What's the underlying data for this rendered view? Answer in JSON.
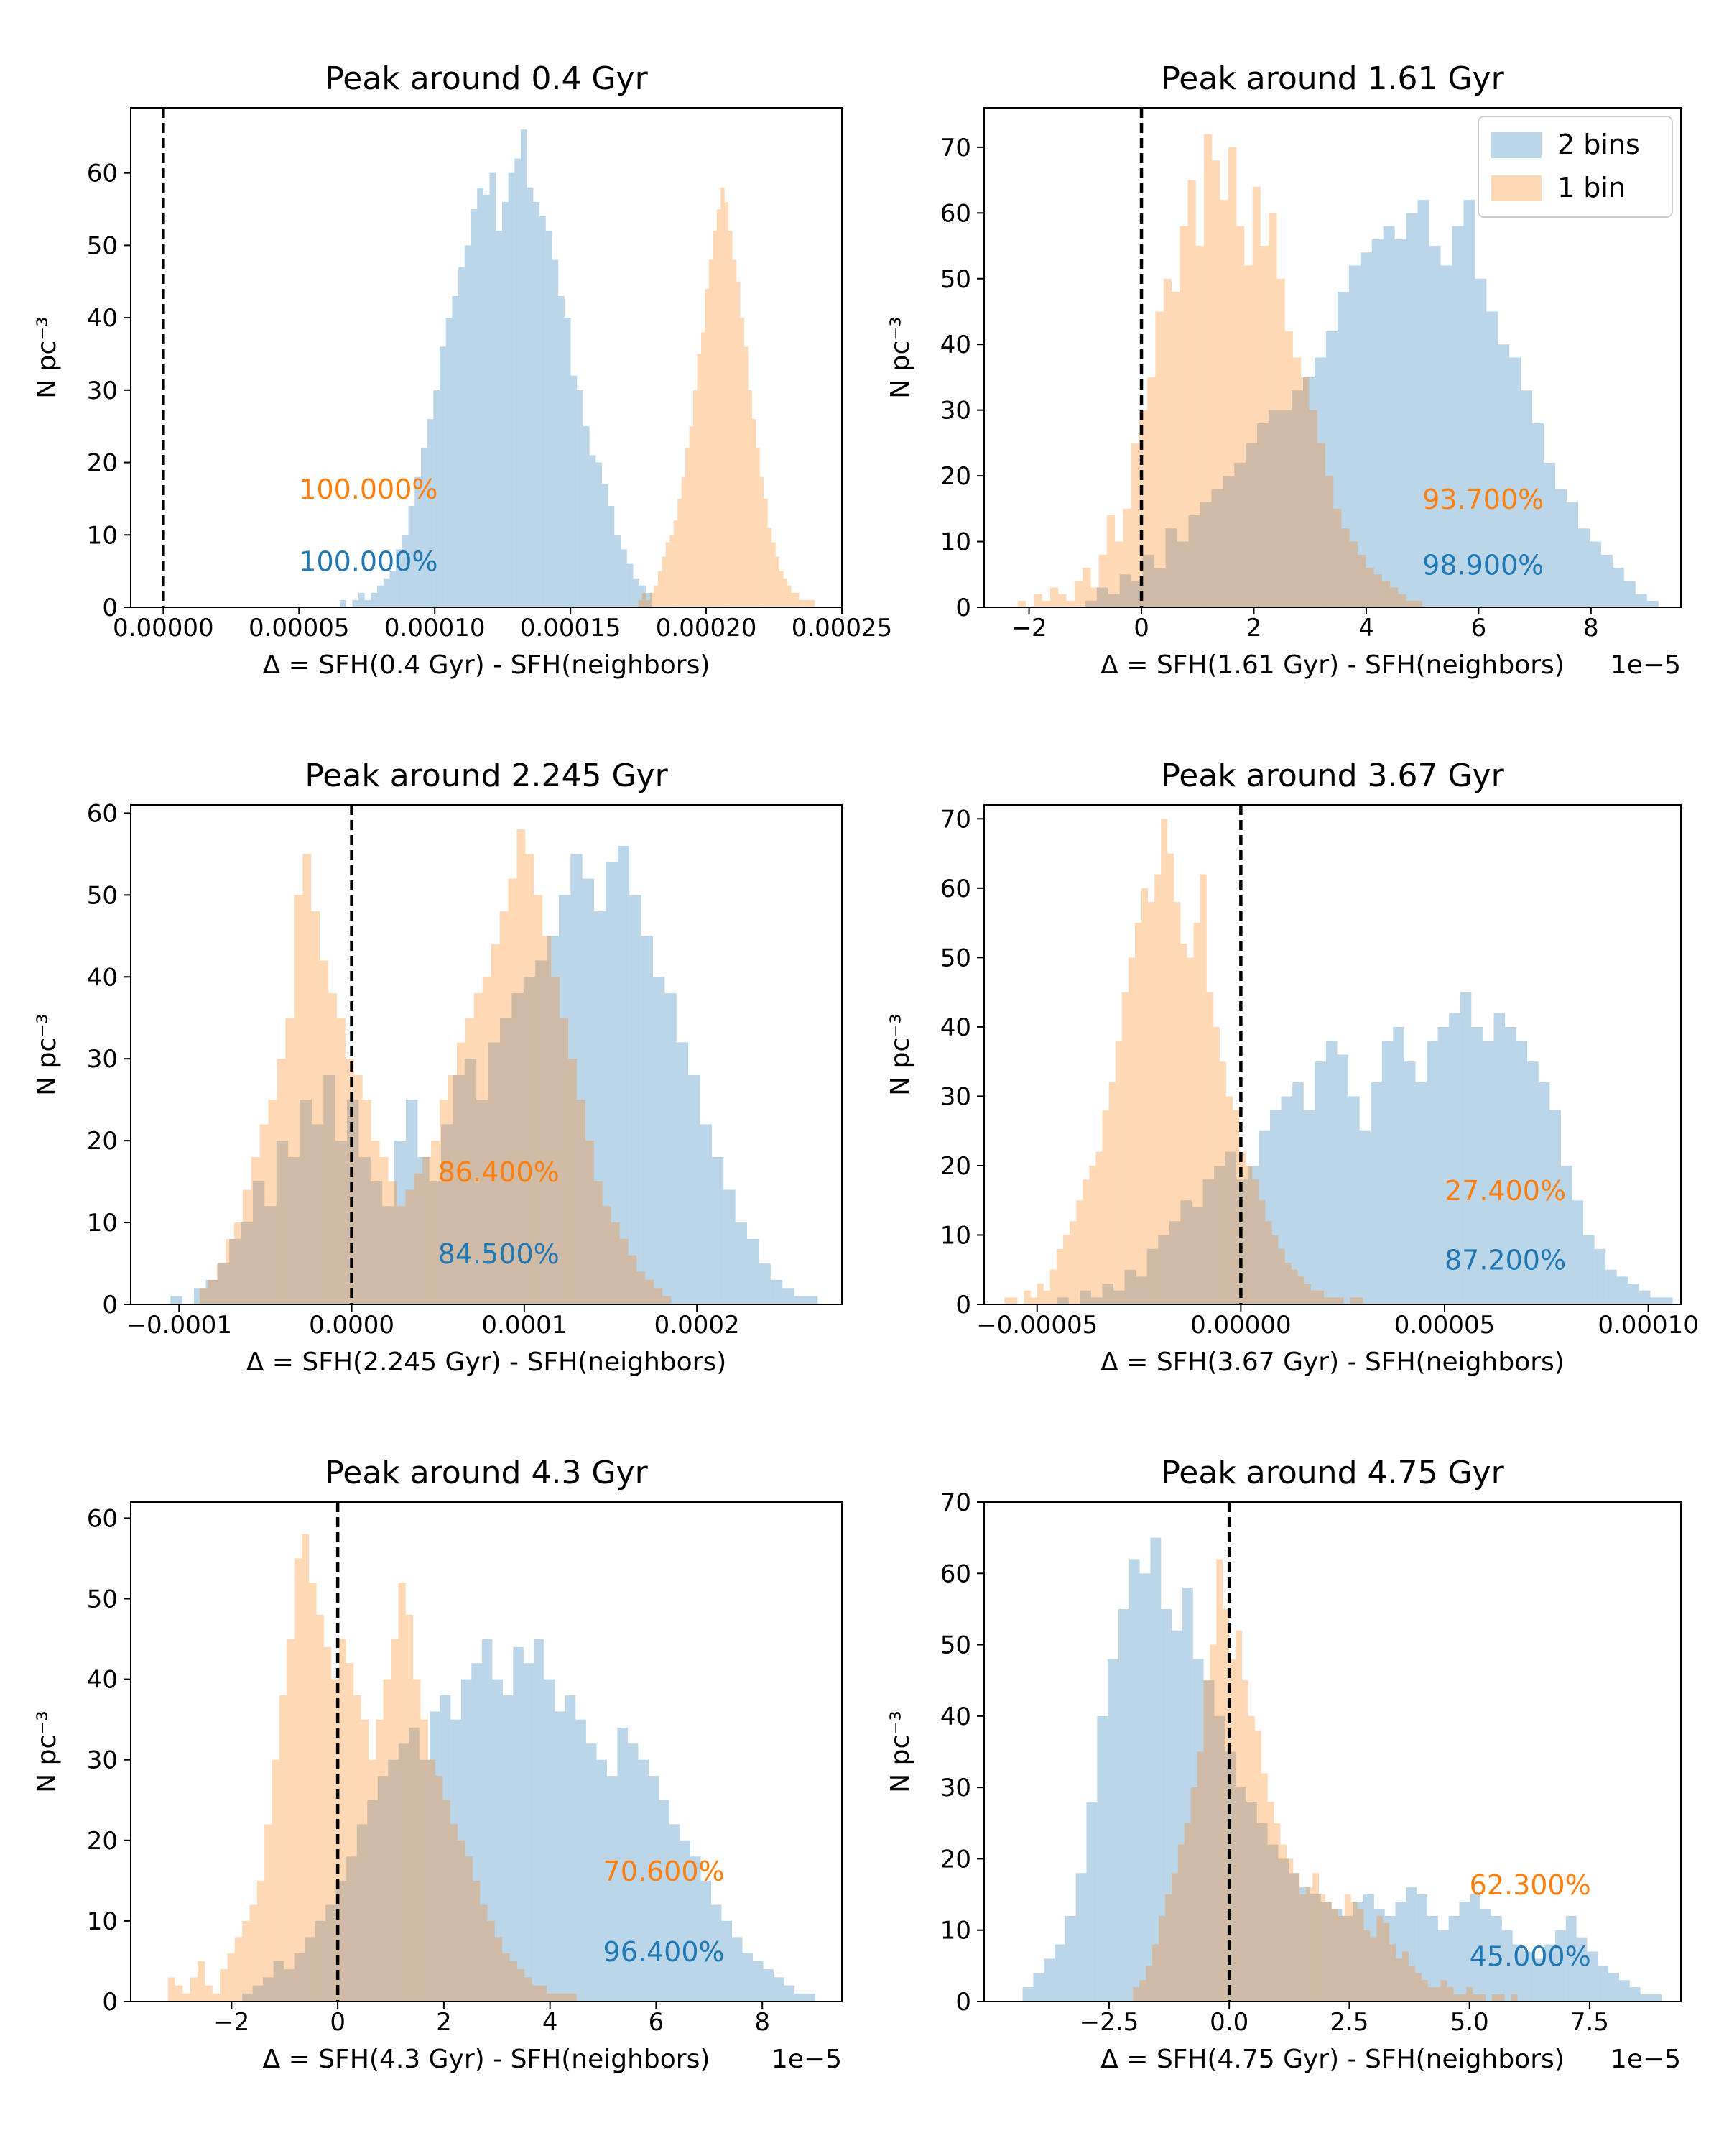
{
  "colors": {
    "two_bins": "#9cc3e1",
    "one_bin": "#ffc491",
    "overlap": "#c2a98e",
    "label_two_bins": "#1f77b4",
    "label_one_bin": "#ff7f0e",
    "axis": "#000000"
  },
  "legend": {
    "two_bins": "2 bins",
    "one_bin": "1 bin"
  },
  "chart_data": [
    {
      "type": "histogram",
      "title": "Peak around 0.4 Gyr",
      "xlabel": "Δ = SFH(0.4 Gyr) - SFH(neighbors)",
      "ylabel": "N pc⁻³",
      "offset_text": "",
      "xlim": [
        -1.2e-05,
        0.00025
      ],
      "ylim": [
        0,
        69
      ],
      "xticks": [
        0,
        5e-05,
        0.0001,
        0.00015,
        0.0002,
        0.00025
      ],
      "xtick_labels": [
        "0.00000",
        "0.00005",
        "0.00010",
        "0.00015",
        "0.00020",
        "0.00025"
      ],
      "yticks": [
        0,
        10,
        20,
        30,
        40,
        50,
        60
      ],
      "ytick_labels": [
        "0",
        "10",
        "20",
        "30",
        "40",
        "50",
        "60"
      ],
      "vline_x": 0,
      "legend_position": "",
      "annotations": {
        "one_bin": "100.000%",
        "two_bins": "100.000%"
      },
      "annotation_x": 5e-05,
      "annotation_y_one_bin": 15,
      "annotation_y_two_bins": 5,
      "series": [
        {
          "key": "two_bins",
          "bins": 50,
          "x_start": 6.5e-05,
          "x_end": 0.00018,
          "counts": [
            1,
            0,
            1,
            2,
            1,
            2,
            3,
            4,
            5,
            8,
            10,
            14,
            18,
            22,
            26,
            30,
            36,
            40,
            43,
            47,
            50,
            55,
            58,
            57,
            60,
            52,
            56,
            60,
            62,
            66,
            58,
            56,
            54,
            52,
            48,
            43,
            40,
            32,
            30,
            25,
            21,
            20,
            17,
            14,
            10,
            8,
            6,
            4,
            3,
            2
          ]
        },
        {
          "key": "one_bin",
          "bins": 45,
          "x_start": 0.000175,
          "x_end": 0.00024,
          "counts": [
            1,
            2,
            1,
            2,
            3,
            5,
            7,
            9,
            10,
            12,
            15,
            18,
            22,
            25,
            30,
            35,
            38,
            44,
            48,
            52,
            55,
            58,
            56,
            52,
            48,
            45,
            40,
            36,
            30,
            26,
            22,
            18,
            15,
            11,
            9,
            7,
            5,
            4,
            3,
            2,
            2,
            1,
            1,
            1,
            1
          ]
        }
      ]
    },
    {
      "type": "histogram",
      "title": "Peak around 1.61 Gyr",
      "xlabel": "Δ = SFH(1.61 Gyr) - SFH(neighbors)",
      "ylabel": "N pc⁻³",
      "offset_text": "1e−5",
      "xlim": [
        -2.8,
        9.6
      ],
      "ylim": [
        0,
        76
      ],
      "xticks": [
        -2,
        0,
        2,
        4,
        6,
        8
      ],
      "xtick_labels": [
        "−2",
        "0",
        "2",
        "4",
        "6",
        "8"
      ],
      "yticks": [
        0,
        10,
        20,
        30,
        40,
        50,
        60,
        70
      ],
      "ytick_labels": [
        "0",
        "10",
        "20",
        "30",
        "40",
        "50",
        "60",
        "70"
      ],
      "vline_x": 0,
      "legend_position": "top-right",
      "annotations": {
        "one_bin": "93.700%",
        "two_bins": "98.900%"
      },
      "annotation_x": 5.0,
      "annotation_y_one_bin": 15,
      "annotation_y_two_bins": 5,
      "series": [
        {
          "key": "two_bins",
          "bins": 50,
          "x_start": -1.0,
          "x_end": 9.2,
          "counts": [
            1,
            3,
            2,
            5,
            4,
            8,
            6,
            12,
            10,
            14,
            16,
            18,
            20,
            22,
            25,
            28,
            30,
            30,
            33,
            35,
            38,
            42,
            48,
            52,
            54,
            56,
            58,
            56,
            60,
            62,
            55,
            52,
            58,
            62,
            50,
            45,
            40,
            38,
            33,
            28,
            22,
            18,
            16,
            12,
            10,
            8,
            6,
            4,
            2,
            1
          ]
        },
        {
          "key": "one_bin",
          "bins": 50,
          "x_start": -2.2,
          "x_end": 5.0,
          "counts": [
            1,
            0,
            2,
            1,
            3,
            2,
            1,
            4,
            6,
            3,
            8,
            14,
            10,
            15,
            25,
            30,
            35,
            45,
            50,
            48,
            58,
            65,
            55,
            72,
            68,
            62,
            70,
            58,
            52,
            64,
            55,
            60,
            50,
            42,
            38,
            35,
            30,
            25,
            20,
            15,
            12,
            10,
            8,
            6,
            5,
            4,
            3,
            2,
            1,
            1
          ]
        }
      ]
    },
    {
      "type": "histogram",
      "title": "Peak around 2.245 Gyr",
      "xlabel": "Δ = SFH(2.245 Gyr) - SFH(neighbors)",
      "ylabel": "N pc⁻³",
      "offset_text": "",
      "xlim": [
        -0.000128,
        0.000284
      ],
      "ylim": [
        0,
        61
      ],
      "xticks": [
        -0.0001,
        0,
        0.0001,
        0.0002
      ],
      "xtick_labels": [
        "−0.0001",
        "0.0000",
        "0.0001",
        "0.0002"
      ],
      "yticks": [
        0,
        10,
        20,
        30,
        40,
        50,
        60
      ],
      "ytick_labels": [
        "0",
        "10",
        "20",
        "30",
        "40",
        "50",
        "60"
      ],
      "vline_x": 0,
      "legend_position": "",
      "annotations": {
        "one_bin": "86.400%",
        "two_bins": "84.500%"
      },
      "annotation_x": 5e-05,
      "annotation_y_one_bin": 15,
      "annotation_y_two_bins": 5,
      "series": [
        {
          "key": "two_bins",
          "bins": 55,
          "x_start": -0.000105,
          "x_end": 0.00027,
          "counts": [
            1,
            0,
            2,
            3,
            5,
            8,
            10,
            15,
            12,
            20,
            18,
            25,
            22,
            28,
            20,
            25,
            18,
            15,
            12,
            20,
            25,
            18,
            15,
            22,
            28,
            30,
            25,
            32,
            35,
            38,
            40,
            42,
            45,
            50,
            55,
            52,
            48,
            54,
            56,
            50,
            45,
            40,
            38,
            32,
            28,
            22,
            18,
            14,
            10,
            8,
            5,
            3,
            2,
            1,
            1
          ]
        },
        {
          "key": "one_bin",
          "bins": 55,
          "x_start": -8.8e-05,
          "x_end": 0.000185,
          "counts": [
            2,
            3,
            5,
            8,
            10,
            14,
            18,
            22,
            25,
            30,
            35,
            50,
            55,
            48,
            42,
            38,
            35,
            30,
            28,
            25,
            20,
            18,
            15,
            12,
            14,
            16,
            18,
            20,
            25,
            28,
            32,
            35,
            38,
            40,
            44,
            48,
            52,
            58,
            55,
            50,
            45,
            40,
            35,
            30,
            25,
            20,
            15,
            12,
            10,
            8,
            6,
            4,
            3,
            2,
            1
          ]
        }
      ]
    },
    {
      "type": "histogram",
      "title": "Peak around 3.67 Gyr",
      "xlabel": "Δ = SFH(3.67 Gyr) - SFH(neighbors)",
      "ylabel": "N pc⁻³",
      "offset_text": "",
      "xlim": [
        -6.3e-05,
        0.000108
      ],
      "ylim": [
        0,
        72
      ],
      "xticks": [
        -5e-05,
        0,
        5e-05,
        0.0001
      ],
      "xtick_labels": [
        "−0.00005",
        "0.00000",
        "0.00005",
        "0.00010"
      ],
      "yticks": [
        0,
        10,
        20,
        30,
        40,
        50,
        60,
        70
      ],
      "ytick_labels": [
        "0",
        "10",
        "20",
        "30",
        "40",
        "50",
        "60",
        "70"
      ],
      "vline_x": 0,
      "legend_position": "",
      "annotations": {
        "one_bin": "27.400%",
        "two_bins": "87.200%"
      },
      "annotation_x": 5e-05,
      "annotation_y_one_bin": 15,
      "annotation_y_two_bins": 5,
      "series": [
        {
          "key": "two_bins",
          "bins": 55,
          "x_start": -4.5e-05,
          "x_end": 0.000106,
          "counts": [
            1,
            0,
            2,
            1,
            3,
            2,
            5,
            4,
            8,
            10,
            12,
            15,
            14,
            18,
            20,
            22,
            18,
            20,
            25,
            28,
            30,
            32,
            28,
            35,
            38,
            36,
            30,
            25,
            32,
            38,
            40,
            35,
            32,
            38,
            40,
            42,
            45,
            40,
            38,
            42,
            40,
            38,
            35,
            32,
            28,
            20,
            15,
            10,
            8,
            5,
            4,
            3,
            2,
            1,
            1
          ]
        },
        {
          "key": "one_bin",
          "bins": 55,
          "x_start": -5.8e-05,
          "x_end": 3e-05,
          "counts": [
            1,
            1,
            0,
            2,
            1,
            3,
            2,
            5,
            8,
            10,
            12,
            15,
            18,
            20,
            22,
            28,
            32,
            38,
            45,
            50,
            55,
            60,
            58,
            62,
            70,
            65,
            58,
            52,
            50,
            55,
            62,
            45,
            40,
            35,
            30,
            28,
            22,
            20,
            18,
            15,
            12,
            10,
            8,
            6,
            5,
            4,
            3,
            2,
            2,
            1,
            1,
            1,
            0,
            1,
            1
          ]
        }
      ]
    },
    {
      "type": "histogram",
      "title": "Peak around 4.3 Gyr",
      "xlabel": "Δ = SFH(4.3 Gyr) - SFH(neighbors)",
      "ylabel": "N pc⁻³",
      "offset_text": "1e−5",
      "xlim": [
        -3.9,
        9.5
      ],
      "ylim": [
        0,
        62
      ],
      "xticks": [
        -2,
        0,
        2,
        4,
        6,
        8
      ],
      "xtick_labels": [
        "−2",
        "0",
        "2",
        "4",
        "6",
        "8"
      ],
      "yticks": [
        0,
        10,
        20,
        30,
        40,
        50,
        60
      ],
      "ytick_labels": [
        "0",
        "10",
        "20",
        "30",
        "40",
        "50",
        "60"
      ],
      "vline_x": 0,
      "legend_position": "",
      "annotations": {
        "one_bin": "70.600%",
        "two_bins": "96.400%"
      },
      "annotation_x": 5.0,
      "annotation_y_one_bin": 15,
      "annotation_y_two_bins": 5,
      "series": [
        {
          "key": "two_bins",
          "bins": 55,
          "x_start": -1.8,
          "x_end": 9.0,
          "counts": [
            1,
            2,
            3,
            5,
            4,
            6,
            8,
            10,
            12,
            15,
            18,
            22,
            25,
            28,
            30,
            32,
            34,
            30,
            36,
            38,
            35,
            40,
            42,
            45,
            40,
            38,
            44,
            42,
            45,
            40,
            36,
            38,
            35,
            32,
            30,
            28,
            34,
            32,
            30,
            28,
            25,
            22,
            20,
            18,
            15,
            12,
            10,
            8,
            6,
            5,
            4,
            3,
            2,
            1,
            1
          ]
        },
        {
          "key": "one_bin",
          "bins": 55,
          "x_start": -3.2,
          "x_end": 4.5,
          "counts": [
            3,
            2,
            1,
            3,
            5,
            2,
            1,
            4,
            6,
            8,
            10,
            12,
            15,
            22,
            30,
            38,
            45,
            55,
            58,
            52,
            48,
            44,
            40,
            45,
            42,
            38,
            35,
            30,
            35,
            40,
            45,
            52,
            48,
            40,
            35,
            30,
            28,
            25,
            22,
            20,
            18,
            15,
            12,
            10,
            8,
            6,
            5,
            4,
            3,
            2,
            2,
            1,
            1,
            1,
            1
          ]
        }
      ]
    },
    {
      "type": "histogram",
      "title": "Peak around 4.75 Gyr",
      "xlabel": "Δ = SFH(4.75 Gyr) - SFH(neighbors)",
      "ylabel": "N pc⁻³",
      "offset_text": "1e−5",
      "xlim": [
        -5.1,
        9.4
      ],
      "ylim": [
        0,
        70
      ],
      "xticks": [
        -2.5,
        0,
        2.5,
        5,
        7.5
      ],
      "xtick_labels": [
        "−2.5",
        "0.0",
        "2.5",
        "5.0",
        "7.5"
      ],
      "yticks": [
        0,
        10,
        20,
        30,
        40,
        50,
        60,
        70
      ],
      "ytick_labels": [
        "0",
        "10",
        "20",
        "30",
        "40",
        "50",
        "60",
        "70"
      ],
      "vline_x": 0,
      "legend_position": "",
      "annotations": {
        "one_bin": "62.300%",
        "two_bins": "45.000%"
      },
      "annotation_x": 5.0,
      "annotation_y_one_bin": 15,
      "annotation_y_two_bins": 5,
      "series": [
        {
          "key": "two_bins",
          "bins": 60,
          "x_start": -4.3,
          "x_end": 9.0,
          "counts": [
            2,
            4,
            6,
            8,
            12,
            18,
            28,
            40,
            48,
            55,
            62,
            60,
            65,
            55,
            52,
            58,
            48,
            45,
            40,
            35,
            30,
            28,
            25,
            22,
            20,
            18,
            16,
            15,
            14,
            13,
            12,
            14,
            15,
            13,
            12,
            14,
            16,
            15,
            12,
            10,
            12,
            14,
            15,
            13,
            12,
            10,
            8,
            7,
            6,
            8,
            10,
            12,
            9,
            7,
            5,
            4,
            3,
            2,
            1,
            1
          ]
        },
        {
          "key": "one_bin",
          "bins": 60,
          "x_start": -2.0,
          "x_end": 6.0,
          "counts": [
            2,
            3,
            5,
            8,
            12,
            15,
            18,
            22,
            25,
            30,
            35,
            45,
            50,
            62,
            55,
            48,
            52,
            45,
            40,
            38,
            32,
            28,
            25,
            22,
            20,
            18,
            15,
            16,
            18,
            15,
            14,
            13,
            12,
            15,
            14,
            13,
            10,
            9,
            12,
            11,
            8,
            6,
            7,
            5,
            4,
            3,
            2,
            2,
            3,
            2,
            1,
            1,
            2,
            1,
            1,
            0,
            1,
            1,
            0,
            1
          ]
        }
      ]
    }
  ]
}
